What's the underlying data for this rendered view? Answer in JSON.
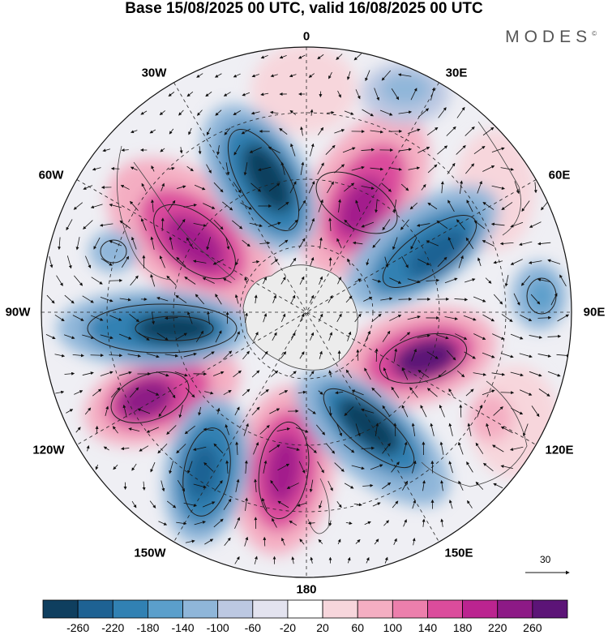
{
  "title": "Base 15/08/2025 00 UTC, valid 16/08/2025 00 UTC",
  "brand": "MODES",
  "brand_mark": "©",
  "longitude_labels": {
    "lon_0": "0",
    "lon_30e": "30E",
    "lon_60e": "60E",
    "lon_90e": "90E",
    "lon_120e": "120E",
    "lon_150e": "150E",
    "lon_180": "180",
    "lon_150w": "150W",
    "lon_120w": "120W",
    "lon_90w": "90W",
    "lon_60w": "60W",
    "lon_30w": "30W"
  },
  "vector_scale": {
    "label": "30"
  },
  "colorbar": {
    "levels": [
      "-260",
      "-220",
      "-180",
      "-140",
      "-100",
      "-60",
      "-20",
      "20",
      "60",
      "100",
      "140",
      "180",
      "220",
      "260"
    ],
    "colors": [
      "#0f3f5f",
      "#1e6293",
      "#3181b3",
      "#5b9fcb",
      "#8fb6d9",
      "#bcc8e2",
      "#e3e3ef",
      "#ffffff",
      "#f7d6dc",
      "#f4aec2",
      "#ec7fac",
      "#db4c9c",
      "#bb2490",
      "#8d1a86",
      "#5c1477"
    ]
  },
  "anomaly_centers": [
    {
      "kind": "negative",
      "value": -260
    },
    {
      "kind": "positive",
      "value": 220
    },
    {
      "kind": "negative",
      "value": -220
    },
    {
      "kind": "positive",
      "value": 260
    },
    {
      "kind": "negative",
      "value": -220
    },
    {
      "kind": "positive",
      "value": 220
    },
    {
      "kind": "negative",
      "value": -180
    },
    {
      "kind": "positive",
      "value": 220
    },
    {
      "kind": "negative",
      "value": -260
    },
    {
      "kind": "positive",
      "value": 180
    },
    {
      "kind": "negative",
      "value": -100
    },
    {
      "kind": "negative",
      "value": -100
    },
    {
      "kind": "negative",
      "value": -60
    }
  ]
}
